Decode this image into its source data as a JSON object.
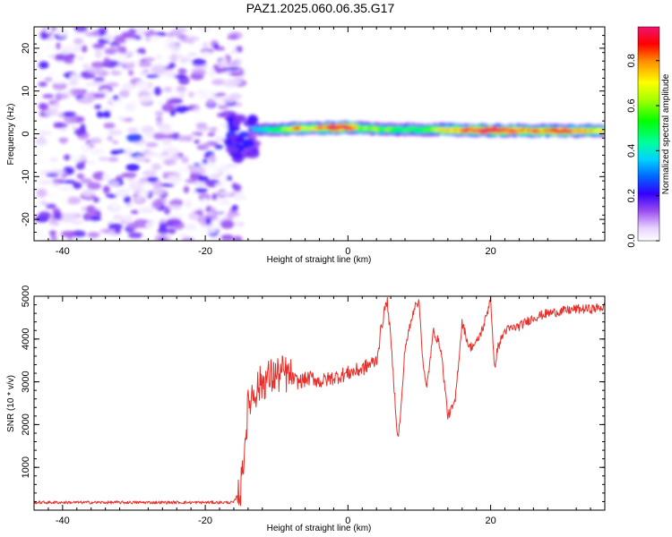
{
  "title": "PAZ1.2025.060.06.35.G17",
  "chart_data": [
    {
      "type": "heatmap",
      "xlabel": "Height of straight line (km)",
      "ylabel": "Frequency (Hz)",
      "xlim": [
        -44,
        36
      ],
      "ylim": [
        -25,
        25
      ],
      "xticks": [
        -40,
        -20,
        0,
        20
      ],
      "xtick_labels": [
        "-40",
        "-20",
        "0",
        "20"
      ],
      "yticks": [
        -20,
        -10,
        0,
        10,
        20
      ],
      "ytick_labels": [
        "-20",
        "-10",
        "0",
        "10",
        "20"
      ],
      "colorbar": {
        "label": "Normalized spectral amplitude",
        "range": [
          0,
          0.95
        ],
        "ticks": [
          0.0,
          0.2,
          0.4,
          0.6,
          0.8
        ],
        "tick_labels": [
          "0.0",
          "0.2",
          "0.4",
          "0.6",
          "0.8"
        ]
      },
      "noise_region": {
        "x": [
          -43,
          -15
        ],
        "frequency": [
          -25,
          25
        ],
        "amplitude": [
          0.0,
          0.2
        ]
      },
      "signal_band": {
        "frequency_center": [
          [
            -13,
            1
          ],
          [
            -10,
            1
          ],
          [
            -5,
            1.3
          ],
          [
            0,
            1.5
          ],
          [
            5,
            1
          ],
          [
            10,
            1
          ],
          [
            15,
            0.9
          ],
          [
            20,
            0.8
          ],
          [
            25,
            0.7
          ],
          [
            30,
            0.7
          ],
          [
            36,
            0.7
          ]
        ],
        "amplitude": [
          [
            -13,
            0.3
          ],
          [
            -10,
            0.45
          ],
          [
            -7,
            0.75
          ],
          [
            -5,
            0.55
          ],
          [
            -2,
            0.95
          ],
          [
            0,
            0.9
          ],
          [
            2,
            0.6
          ],
          [
            5,
            0.5
          ],
          [
            10,
            0.45
          ],
          [
            15,
            0.75
          ],
          [
            20,
            0.95
          ],
          [
            25,
            0.75
          ],
          [
            30,
            0.85
          ],
          [
            36,
            0.6
          ]
        ]
      }
    },
    {
      "type": "line",
      "xlabel": "Height of straight line (km)",
      "ylabel": "SNR (10 * v/v)",
      "xlim": [
        -44,
        36
      ],
      "ylim": [
        0,
        5000
      ],
      "xticks": [
        -40,
        -20,
        0,
        20
      ],
      "xtick_labels": [
        "-40",
        "-20",
        "0",
        "20"
      ],
      "yticks": [
        1000,
        2000,
        3000,
        4000,
        5000
      ],
      "ytick_labels": [
        "1000",
        "2000",
        "3000",
        "4000",
        "5000"
      ],
      "color": "#e8302a",
      "series": [
        {
          "x": [
            -44,
            -30,
            -16,
            -15,
            -14.5,
            -14,
            -13.5,
            -13,
            -12.5,
            -12,
            -11,
            -10,
            -9,
            -8,
            -7,
            -6,
            -5,
            -4,
            -3,
            -2,
            -1,
            0,
            1,
            2,
            3,
            4,
            5,
            5.5,
            6,
            6.5,
            7,
            7.5,
            8,
            9,
            9.5,
            10,
            10.5,
            11,
            12,
            13,
            14,
            15,
            16,
            17,
            18,
            19,
            19.5,
            20,
            20.5,
            21,
            22,
            24,
            26,
            28,
            30,
            32,
            34,
            36
          ],
          "y": [
            180,
            180,
            180,
            500,
            1500,
            2400,
            2700,
            2800,
            2900,
            3000,
            3100,
            3150,
            3200,
            3100,
            3000,
            3050,
            3100,
            3000,
            3050,
            3100,
            3150,
            3200,
            3250,
            3300,
            3400,
            3500,
            4600,
            4900,
            4000,
            2800,
            1600,
            2500,
            3800,
            4500,
            4900,
            4800,
            3500,
            2800,
            4200,
            3800,
            2200,
            2500,
            4400,
            3800,
            3900,
            4300,
            4600,
            5000,
            3300,
            3800,
            4200,
            4300,
            4500,
            4600,
            4650,
            4700,
            4700,
            4750
          ]
        }
      ]
    }
  ]
}
